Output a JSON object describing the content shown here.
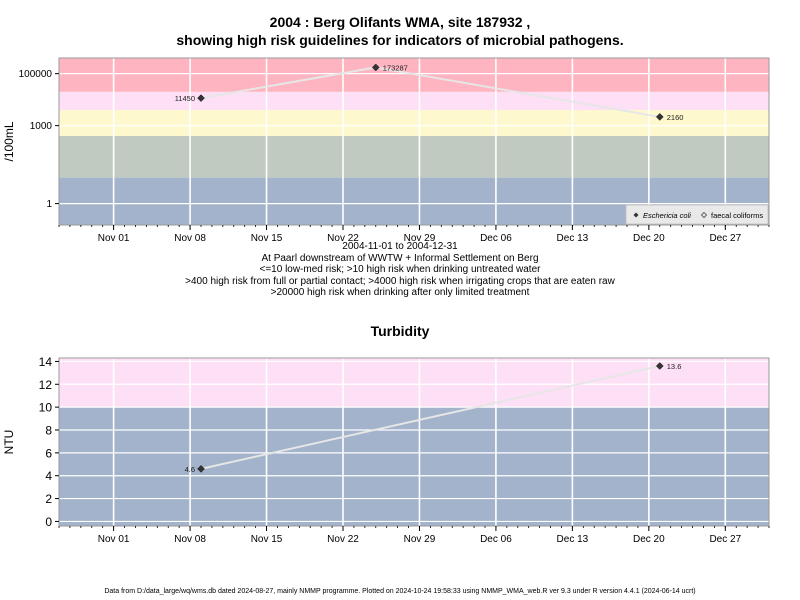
{
  "chart_data": [
    {
      "type": "scatter",
      "title_line1": "2004 : Berg Olifants WMA, site 187932 ,",
      "title_line2": "showing high risk guidelines for indicators of microbial pathogens.",
      "ylabel": "/100mL",
      "yscale": "log",
      "ylim": [
        0.15,
        400000
      ],
      "yticks": [
        {
          "value": 1,
          "label": "1"
        },
        {
          "value": 1000,
          "label": "1000"
        },
        {
          "value": 100000,
          "label": "100000"
        }
      ],
      "xlim": [
        "2004-10-27",
        "2004-12-31"
      ],
      "xticks": [
        {
          "date": "2004-11-01",
          "label": "Nov 01"
        },
        {
          "date": "2004-11-08",
          "label": "Nov 08"
        },
        {
          "date": "2004-11-15",
          "label": "Nov 15"
        },
        {
          "date": "2004-11-22",
          "label": "Nov 22"
        },
        {
          "date": "2004-11-29",
          "label": "Nov 29"
        },
        {
          "date": "2004-12-06",
          "label": "Dec 06"
        },
        {
          "date": "2004-12-13",
          "label": "Dec 13"
        },
        {
          "date": "2004-12-20",
          "label": "Dec 20"
        },
        {
          "date": "2004-12-27",
          "label": "Dec 27"
        }
      ],
      "bands": [
        {
          "from": 0.15,
          "to": 10,
          "color": "#a2b3cb"
        },
        {
          "from": 10,
          "to": 400,
          "color": "#c0cac0"
        },
        {
          "from": 400,
          "to": 4000,
          "color": "#fdf8cd"
        },
        {
          "from": 4000,
          "to": 20000,
          "color": "#fde0f5"
        },
        {
          "from": 20000,
          "to": 400000,
          "color": "#feb4c1"
        }
      ],
      "series": [
        {
          "name": "Eschericia coli",
          "marker": "filled-diamond",
          "points": [
            {
              "date": "2004-11-09",
              "value": 11450,
              "label": "11450"
            },
            {
              "date": "2004-11-25",
              "value": 173287,
              "label": "173287"
            },
            {
              "date": "2004-12-21",
              "value": 2160,
              "label": "2160"
            }
          ]
        },
        {
          "name": "faecal coliforms",
          "marker": "open-diamond",
          "points": []
        }
      ],
      "legend_position": "bottom-right",
      "caption": [
        "2004-11-01 to 2004-12-31",
        "At Paarl downstream of WWTW + Informal Settlement on Berg",
        "<=10 low-med risk; >10 high risk when drinking untreated water",
        ">400 high risk from full or partial contact; >4000 high risk when irrigating crops that are eaten raw",
        ">20000 high risk when drinking after only limited treatment"
      ],
      "grid": true
    },
    {
      "type": "scatter",
      "title": "Turbidity",
      "ylabel": "NTU",
      "yscale": "linear",
      "ylim": [
        -0.4,
        14.3
      ],
      "yticks": [
        {
          "value": 0,
          "label": "0"
        },
        {
          "value": 2,
          "label": "2"
        },
        {
          "value": 4,
          "label": "4"
        },
        {
          "value": 6,
          "label": "6"
        },
        {
          "value": 8,
          "label": "8"
        },
        {
          "value": 10,
          "label": "10"
        },
        {
          "value": 12,
          "label": "12"
        },
        {
          "value": 14,
          "label": "14"
        }
      ],
      "xlim": [
        "2004-10-27",
        "2004-12-31"
      ],
      "xticks": [
        {
          "date": "2004-11-01",
          "label": "Nov 01"
        },
        {
          "date": "2004-11-08",
          "label": "Nov 08"
        },
        {
          "date": "2004-11-15",
          "label": "Nov 15"
        },
        {
          "date": "2004-11-22",
          "label": "Nov 22"
        },
        {
          "date": "2004-11-29",
          "label": "Nov 29"
        },
        {
          "date": "2004-12-06",
          "label": "Dec 06"
        },
        {
          "date": "2004-12-13",
          "label": "Dec 13"
        },
        {
          "date": "2004-12-20",
          "label": "Dec 20"
        },
        {
          "date": "2004-12-27",
          "label": "Dec 27"
        }
      ],
      "bands": [
        {
          "from": -0.4,
          "to": 10,
          "color": "#a2b3cb"
        },
        {
          "from": 10,
          "to": 14.3,
          "color": "#fde0f5"
        }
      ],
      "series": [
        {
          "name": "",
          "marker": "filled-diamond",
          "points": [
            {
              "date": "2004-11-09",
              "value": 4.6,
              "label": "4.6"
            },
            {
              "date": "2004-12-21",
              "value": 13.6,
              "label": "13.6"
            }
          ]
        }
      ],
      "grid": true
    }
  ],
  "footer": "Data from D:/data_large/wq/wms.db dated 2024-08-27, mainly NMMP programme. Plotted on 2024-10-24 19:58:33 using NMMP_WMA_web.R ver 9.3 under R version 4.4.1 (2024-06-14 ucrt)"
}
